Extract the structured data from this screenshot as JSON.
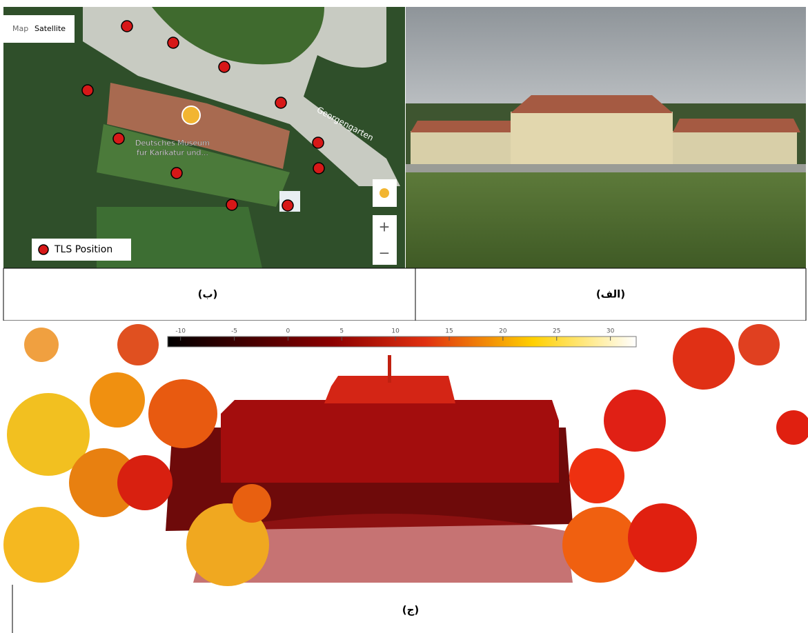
{
  "map": {
    "buttons": [
      "Map",
      "Satellite"
    ],
    "place_label": [
      "Deutsches Museum",
      "fur Karikatur und..."
    ],
    "street_label": "Georgengarten",
    "legend": "TLS Position",
    "zoom": [
      "+",
      "−"
    ]
  },
  "captions": {
    "map": "(ب)",
    "photo": "(الف)",
    "cloud": "(ج)"
  },
  "colorbar": {
    "range": [
      -11.2,
      32.4
    ],
    "ticks": [
      -10,
      -5,
      0,
      5,
      10,
      15,
      20,
      25,
      30
    ]
  }
}
